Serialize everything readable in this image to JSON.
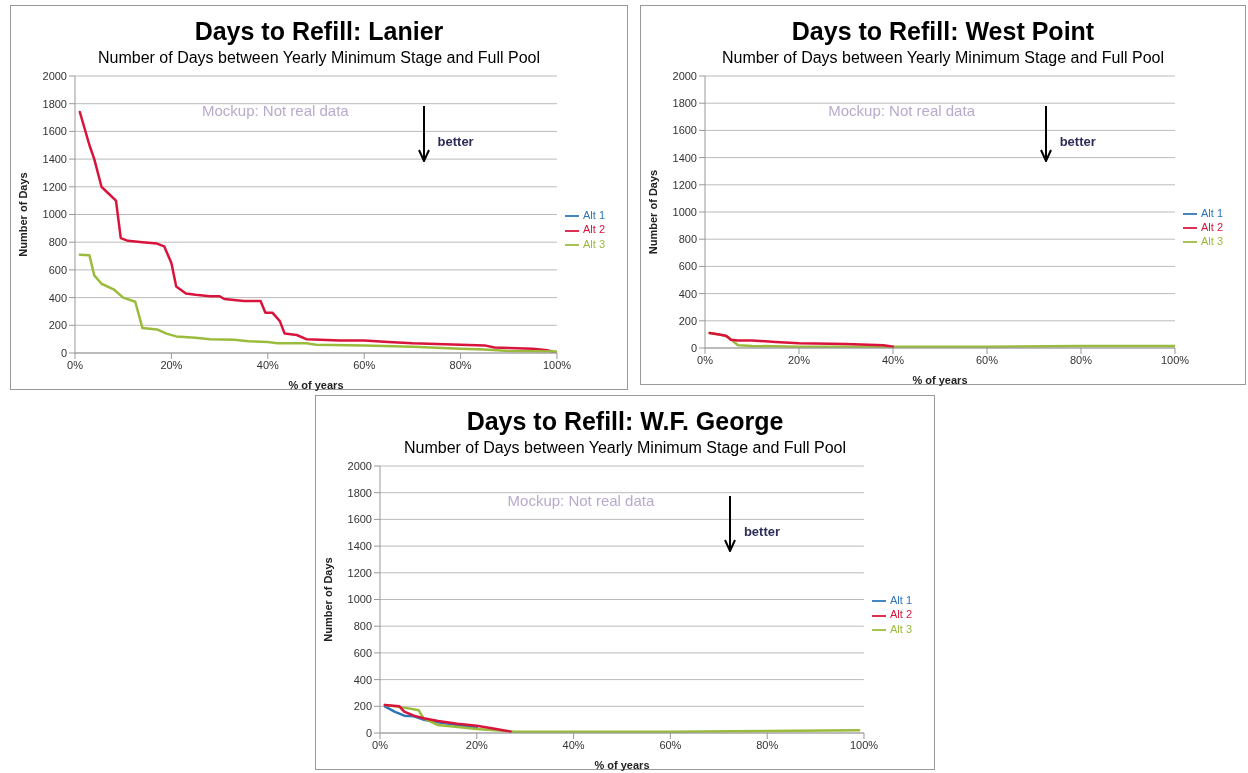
{
  "chart_data": [
    {
      "type": "line",
      "title": "Days to Refill: Lanier",
      "subtitle": "Number of Days between Yearly Minimum Stage and Full Pool",
      "xlabel": "% of years",
      "ylabel": "Number of Days",
      "annotations": [
        "Mockup: Not real data",
        "better"
      ],
      "xlim": [
        0,
        100
      ],
      "xticks": [
        {
          "value": 0,
          "label": "0%"
        },
        {
          "value": 20,
          "label": "20%"
        },
        {
          "value": 40,
          "label": "40%"
        },
        {
          "value": 60,
          "label": "60%"
        },
        {
          "value": 80,
          "label": "80%"
        },
        {
          "value": 100,
          "label": "100%"
        }
      ],
      "ylim": [
        0,
        2000
      ],
      "yticks": [
        0,
        200,
        400,
        600,
        800,
        1000,
        1200,
        1400,
        1600,
        1800,
        2000
      ],
      "grid": "y",
      "legend": "right",
      "marker": "none",
      "line_style": "solid",
      "series": [
        {
          "name": "Alt 1",
          "color": "#2e75b6"
        },
        {
          "name": "Alt 2",
          "color": "#d9143c",
          "x": [
            1,
            3,
            4,
            5.5,
            7,
            8.5,
            9.5,
            11,
            14,
            17,
            18.5,
            20,
            21,
            23,
            25,
            28,
            30,
            31,
            35,
            38.5,
            39.5,
            41,
            42.5,
            43.5,
            46,
            48,
            55,
            60,
            65,
            70,
            80,
            85,
            87,
            95,
            98,
            100
          ],
          "values": [
            1740,
            1500,
            1400,
            1200,
            1150,
            1100,
            830,
            810,
            800,
            790,
            770,
            650,
            480,
            430,
            420,
            410,
            410,
            390,
            375,
            375,
            290,
            290,
            230,
            140,
            130,
            100,
            90,
            90,
            80,
            70,
            60,
            55,
            40,
            30,
            20,
            0
          ]
        },
        {
          "name": "Alt 3",
          "color": "#9bbb3c",
          "x": [
            1,
            3,
            4,
            5.5,
            8,
            10,
            12.5,
            14,
            17,
            19,
            21,
            25,
            28,
            33,
            36,
            40,
            42,
            48,
            50,
            60,
            70,
            80,
            85,
            90,
            100
          ],
          "values": [
            710,
            705,
            560,
            500,
            460,
            400,
            370,
            180,
            170,
            140,
            120,
            110,
            100,
            95,
            85,
            80,
            70,
            70,
            60,
            55,
            45,
            30,
            25,
            15,
            10
          ]
        }
      ]
    },
    {
      "type": "line",
      "title": "Days to Refill: West Point",
      "subtitle": "Number of Days between Yearly Minimum Stage and Full Pool",
      "xlabel": "% of years",
      "ylabel": "Number of Days",
      "annotations": [
        "Mockup: Not real data",
        "better"
      ],
      "xlim": [
        0,
        100
      ],
      "xticks": [
        {
          "value": 0,
          "label": "0%"
        },
        {
          "value": 20,
          "label": "20%"
        },
        {
          "value": 40,
          "label": "40%"
        },
        {
          "value": 60,
          "label": "60%"
        },
        {
          "value": 80,
          "label": "80%"
        },
        {
          "value": 100,
          "label": "100%"
        }
      ],
      "ylim": [
        0,
        2000
      ],
      "yticks": [
        0,
        200,
        400,
        600,
        800,
        1000,
        1200,
        1400,
        1600,
        1800,
        2000
      ],
      "grid": "y",
      "legend": "right",
      "marker": "none",
      "line_style": "solid",
      "series": [
        {
          "name": "Alt 1",
          "color": "#2e75b6"
        },
        {
          "name": "Alt 3",
          "color": "#9bbb3c",
          "x": [
            1,
            3,
            5,
            7,
            10,
            20,
            40,
            60,
            80,
            100
          ],
          "values": [
            110,
            100,
            80,
            20,
            15,
            10,
            10,
            10,
            15,
            15
          ]
        },
        {
          "name": "Alt 2",
          "color": "#d9143c",
          "x": [
            1,
            3,
            4.5,
            5.5,
            7,
            10,
            15,
            20,
            30,
            38,
            40
          ],
          "values": [
            110,
            100,
            90,
            60,
            55,
            55,
            45,
            35,
            30,
            20,
            10
          ]
        }
      ]
    },
    {
      "type": "line",
      "title": "Days to Refill: W.F. George",
      "subtitle": "Number of Days between Yearly Minimum Stage and Full Pool",
      "xlabel": "% of years",
      "ylabel": "Number of Days",
      "annotations": [
        "Mockup: Not real data",
        "better"
      ],
      "xlim": [
        0,
        100
      ],
      "xticks": [
        {
          "value": 0,
          "label": "0%"
        },
        {
          "value": 20,
          "label": "20%"
        },
        {
          "value": 40,
          "label": "40%"
        },
        {
          "value": 60,
          "label": "60%"
        },
        {
          "value": 80,
          "label": "80%"
        },
        {
          "value": 100,
          "label": "100%"
        }
      ],
      "ylim": [
        0,
        2000
      ],
      "yticks": [
        0,
        200,
        400,
        600,
        800,
        1000,
        1200,
        1400,
        1600,
        1800,
        2000
      ],
      "grid": "y",
      "legend": "right",
      "marker": "none",
      "line_style": "solid",
      "series": [
        {
          "name": "Alt 1",
          "color": "#2e75b6",
          "x": [
            1,
            3,
            5,
            7,
            9,
            12,
            16,
            20
          ],
          "values": [
            200,
            160,
            130,
            125,
            100,
            80,
            60,
            40
          ]
        },
        {
          "name": "Alt 3",
          "color": "#9bbb3c",
          "x": [
            1,
            5,
            8,
            9,
            12,
            20,
            28,
            40,
            60,
            80,
            99
          ],
          "values": [
            210,
            190,
            170,
            110,
            60,
            30,
            10,
            10,
            10,
            15,
            20
          ]
        },
        {
          "name": "Alt 2",
          "color": "#d9143c",
          "x": [
            1,
            4,
            5,
            7,
            9,
            12,
            16,
            20,
            24,
            27
          ],
          "values": [
            210,
            200,
            160,
            130,
            110,
            90,
            70,
            55,
            30,
            10
          ]
        }
      ]
    }
  ]
}
